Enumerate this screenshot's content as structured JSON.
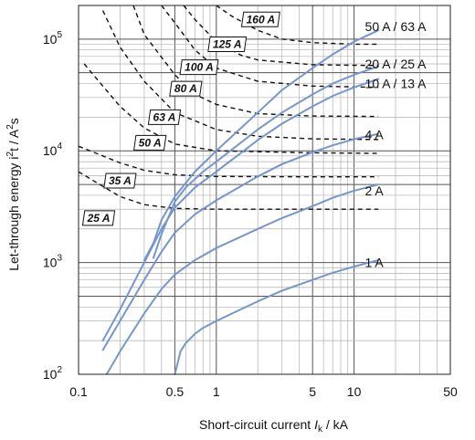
{
  "chart_data": {
    "type": "line",
    "x_scale": "log",
    "y_scale": "log",
    "xlim": [
      0.1,
      50
    ],
    "ylim": [
      100,
      200000
    ],
    "grid": true,
    "legend": "labels at right end of curves",
    "xlabel": {
      "prefix": "Short-circuit current ",
      "symbol": "I",
      "subscript": "k",
      "unit": " / kA"
    },
    "ylabel": {
      "prefix": "Let-through energy i",
      "sup": "2",
      "suffix": "t / A",
      "sup2": "2",
      "tail": "s"
    },
    "x_tick_labels": [
      {
        "value": 0.1,
        "label": "0.1"
      },
      {
        "value": 0.5,
        "label": "0.5"
      },
      {
        "value": 1,
        "label": "1"
      },
      {
        "value": 5,
        "label": "5"
      },
      {
        "value": 10,
        "label": "10"
      },
      {
        "value": 50,
        "label": "50"
      }
    ],
    "y_tick_labels": [
      {
        "value": 100,
        "base": "10",
        "exp": "2"
      },
      {
        "value": 1000,
        "base": "10",
        "exp": "3"
      },
      {
        "value": 10000,
        "base": "10",
        "exp": "4"
      },
      {
        "value": 100000,
        "base": "10",
        "exp": "5"
      }
    ],
    "series": [
      {
        "name": "50 A / 63 A",
        "label_at": [
          12,
          130000
        ],
        "points": [
          [
            0.3,
            1050
          ],
          [
            0.35,
            1500
          ],
          [
            0.4,
            2400
          ],
          [
            0.5,
            3900
          ],
          [
            0.7,
            6500
          ],
          [
            1,
            10000
          ],
          [
            2,
            22000
          ],
          [
            3,
            35000
          ],
          [
            5,
            55000
          ],
          [
            7,
            73000
          ],
          [
            10,
            95000
          ],
          [
            15,
            120000
          ]
        ]
      },
      {
        "name": "20 A / 25 A",
        "label_at": [
          12,
          60000
        ],
        "points": [
          [
            0.35,
            1100
          ],
          [
            0.4,
            1800
          ],
          [
            0.5,
            3500
          ],
          [
            0.6,
            4700
          ],
          [
            0.8,
            6500
          ],
          [
            1,
            8000
          ],
          [
            2,
            15500
          ],
          [
            3,
            22000
          ],
          [
            5,
            32000
          ],
          [
            7,
            40000
          ],
          [
            10,
            48000
          ],
          [
            15,
            57000
          ]
        ]
      },
      {
        "name": "10 A / 13 A",
        "label_at": [
          12,
          40000
        ],
        "points": [
          [
            0.15,
            200
          ],
          [
            0.2,
            380
          ],
          [
            0.3,
            1000
          ],
          [
            0.4,
            2000
          ],
          [
            0.5,
            3100
          ],
          [
            0.7,
            4700
          ],
          [
            1,
            6500
          ],
          [
            2,
            12500
          ],
          [
            3,
            17500
          ],
          [
            5,
            25000
          ],
          [
            7,
            31000
          ],
          [
            10,
            37000
          ],
          [
            15,
            44000
          ]
        ]
      },
      {
        "name": "4 A",
        "label_at": [
          12,
          14000
        ],
        "points": [
          [
            0.15,
            165
          ],
          [
            0.2,
            300
          ],
          [
            0.3,
            700
          ],
          [
            0.4,
            1250
          ],
          [
            0.5,
            1850
          ],
          [
            0.7,
            2700
          ],
          [
            1,
            3600
          ],
          [
            2,
            5900
          ],
          [
            3,
            7600
          ],
          [
            5,
            9700
          ],
          [
            7,
            11200
          ],
          [
            10,
            12700
          ],
          [
            15,
            14200
          ]
        ]
      },
      {
        "name": "2 A",
        "label_at": [
          12,
          4400
        ],
        "points": [
          [
            0.16,
            100
          ],
          [
            0.2,
            160
          ],
          [
            0.3,
            350
          ],
          [
            0.4,
            580
          ],
          [
            0.5,
            780
          ],
          [
            0.7,
            1050
          ],
          [
            1,
            1350
          ],
          [
            2,
            2000
          ],
          [
            3,
            2500
          ],
          [
            5,
            3200
          ],
          [
            7,
            3800
          ],
          [
            10,
            4400
          ],
          [
            15,
            5000
          ]
        ]
      },
      {
        "name": "1 A",
        "label_at": [
          12,
          1000
        ],
        "points": [
          [
            0.5,
            100
          ],
          [
            0.55,
            160
          ],
          [
            0.6,
            190
          ],
          [
            0.7,
            230
          ],
          [
            0.8,
            260
          ],
          [
            1,
            300
          ],
          [
            2,
            450
          ],
          [
            3,
            560
          ],
          [
            5,
            700
          ],
          [
            7,
            810
          ],
          [
            10,
            920
          ],
          [
            15,
            1050
          ]
        ]
      }
    ],
    "fuse_curves": [
      {
        "name": "25 A",
        "label_at": [
          0.14,
          2500
        ],
        "points": [
          [
            0.1,
            6500
          ],
          [
            0.15,
            4800
          ],
          [
            0.2,
            3900
          ],
          [
            0.3,
            3300
          ],
          [
            0.5,
            3050
          ],
          [
            1,
            3000
          ],
          [
            5,
            3000
          ],
          [
            15,
            3000
          ]
        ]
      },
      {
        "name": "35 A",
        "label_at": [
          0.2,
          5400
        ],
        "points": [
          [
            0.1,
            11000
          ],
          [
            0.15,
            9000
          ],
          [
            0.2,
            7800
          ],
          [
            0.3,
            6700
          ],
          [
            0.5,
            6100
          ],
          [
            1,
            5900
          ],
          [
            5,
            5850
          ],
          [
            15,
            5850
          ]
        ]
      },
      {
        "name": "50 A",
        "label_at": [
          0.33,
          11800
        ],
        "points": [
          [
            0.11,
            60000
          ],
          [
            0.15,
            38000
          ],
          [
            0.2,
            25000
          ],
          [
            0.3,
            16000
          ],
          [
            0.5,
            11500
          ],
          [
            1,
            10000
          ],
          [
            5,
            9600
          ],
          [
            15,
            9500
          ]
        ]
      },
      {
        "name": "63 A",
        "label_at": [
          0.42,
          20000
        ],
        "points": [
          [
            0.15,
            180000
          ],
          [
            0.2,
            85000
          ],
          [
            0.3,
            42000
          ],
          [
            0.5,
            22000
          ],
          [
            1,
            15500
          ],
          [
            2,
            13500
          ],
          [
            5,
            12800
          ],
          [
            15,
            12600
          ]
        ]
      },
      {
        "name": "80 A",
        "label_at": [
          0.6,
          36000
        ],
        "points": [
          [
            0.25,
            200000
          ],
          [
            0.3,
            110000
          ],
          [
            0.5,
            48000
          ],
          [
            0.7,
            32000
          ],
          [
            1,
            26000
          ],
          [
            2,
            21500
          ],
          [
            5,
            20500
          ],
          [
            15,
            20300
          ]
        ]
      },
      {
        "name": "100 A",
        "label_at": [
          0.75,
          56000
        ],
        "points": [
          [
            0.4,
            200000
          ],
          [
            0.5,
            140000
          ],
          [
            0.7,
            80000
          ],
          [
            1,
            55000
          ],
          [
            2,
            42000
          ],
          [
            5,
            38000
          ],
          [
            15,
            37000
          ]
        ]
      },
      {
        "name": "125 A",
        "label_at": [
          1.2,
          90000
        ],
        "points": [
          [
            0.58,
            200000
          ],
          [
            0.7,
            150000
          ],
          [
            1,
            95000
          ],
          [
            1.5,
            72000
          ],
          [
            2,
            65000
          ],
          [
            5,
            59000
          ],
          [
            15,
            58000
          ]
        ]
      },
      {
        "name": "160 A",
        "label_at": [
          2.1,
          150000
        ],
        "points": [
          [
            1,
            200000
          ],
          [
            1.3,
            160000
          ],
          [
            2,
            120000
          ],
          [
            3,
            100000
          ],
          [
            5,
            93000
          ],
          [
            10,
            90000
          ],
          [
            15,
            90000
          ]
        ]
      }
    ],
    "colors": {
      "series": "#7596cc",
      "fuse": "#111111",
      "grid_major": "#555555",
      "grid_minor": "#b0b0b0"
    }
  }
}
